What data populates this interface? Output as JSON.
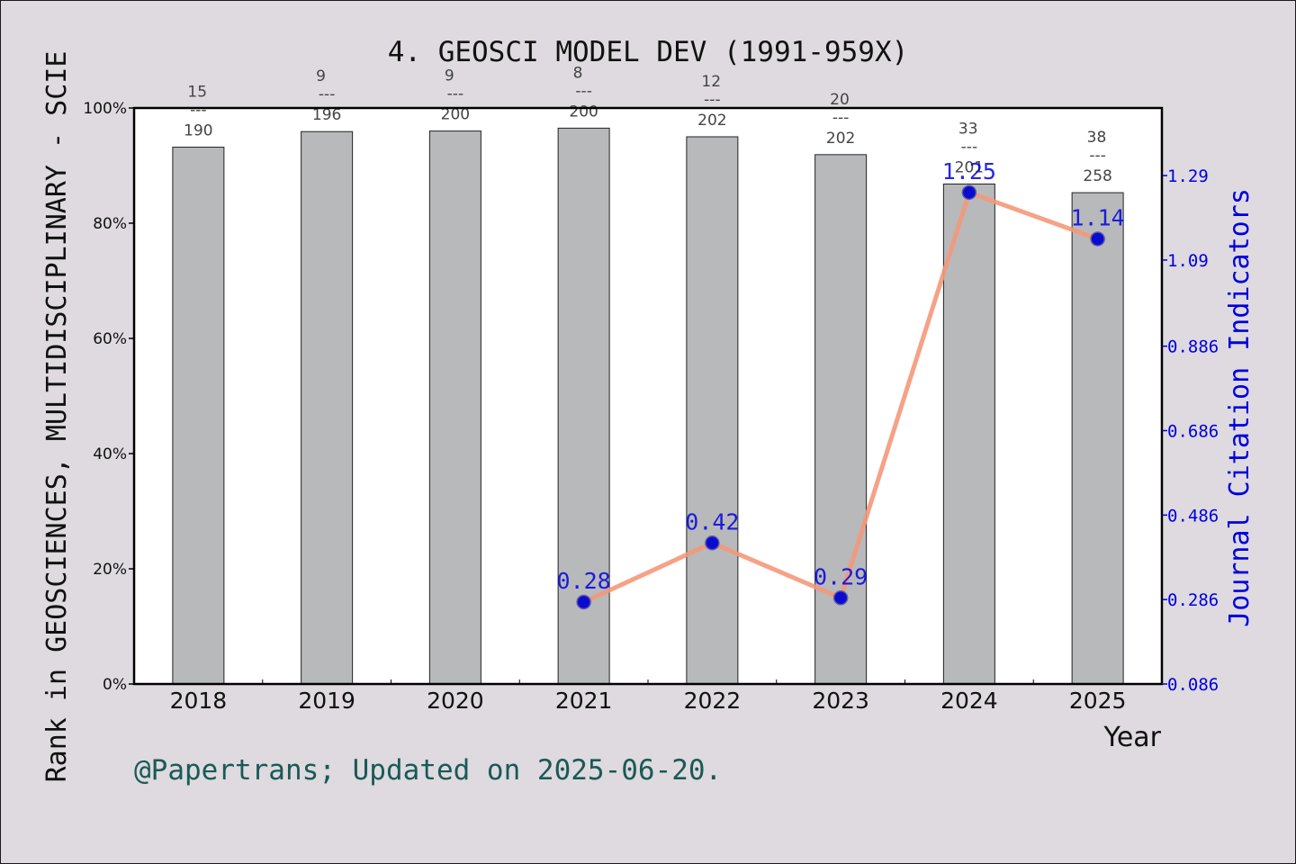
{
  "chart_data": {
    "type": "bar",
    "title": "4. GEOSCI MODEL DEV (1991-959X)",
    "xlabel": "Year",
    "ylabel": "Rank in GEOSCIENCES, MULTIDISCIPLINARY - SCIE",
    "y2label": "Journal Citation Indicators",
    "footer": "@Papertrans; Updated on 2025-06-20.",
    "categories": [
      "2018",
      "2019",
      "2020",
      "2021",
      "2022",
      "2023",
      "2024",
      "2025"
    ],
    "ylim": [
      0,
      100
    ],
    "yticks": [
      "0%",
      "20%",
      "40%",
      "60%",
      "80%",
      "100%"
    ],
    "y2lim": [
      0.086,
      1.45
    ],
    "y2ticks": [
      "0.086",
      "0.286",
      "0.486",
      "0.686",
      "0.886",
      "1.09",
      "1.29"
    ],
    "colors": {
      "bar": "#b8b9bb",
      "line": "#f4987a",
      "marker": "#0a0ad0",
      "jci_text": "#0000dd",
      "footer": "#1a5a55",
      "background": "#dedadf"
    },
    "series": [
      {
        "kind": "bar",
        "values": [
          93.2,
          95.9,
          96.0,
          96.5,
          95.0,
          91.9,
          86.8,
          85.3
        ],
        "labels": [
          {
            "rank": "15",
            "total": "190"
          },
          {
            "rank": "9",
            "total": "196"
          },
          {
            "rank": "9",
            "total": "200"
          },
          {
            "rank": "8",
            "total": "200"
          },
          {
            "rank": "12",
            "total": "202"
          },
          {
            "rank": "20",
            "total": "202"
          },
          {
            "rank": "33",
            "total": "201"
          },
          {
            "rank": "38",
            "total": "258"
          }
        ]
      },
      {
        "kind": "line",
        "values": [
          null,
          null,
          null,
          0.28,
          0.42,
          0.29,
          1.25,
          1.14
        ],
        "labels": [
          "",
          "",
          "",
          "0.28",
          "0.42",
          "0.29",
          "1.25",
          "1.14"
        ]
      }
    ]
  }
}
